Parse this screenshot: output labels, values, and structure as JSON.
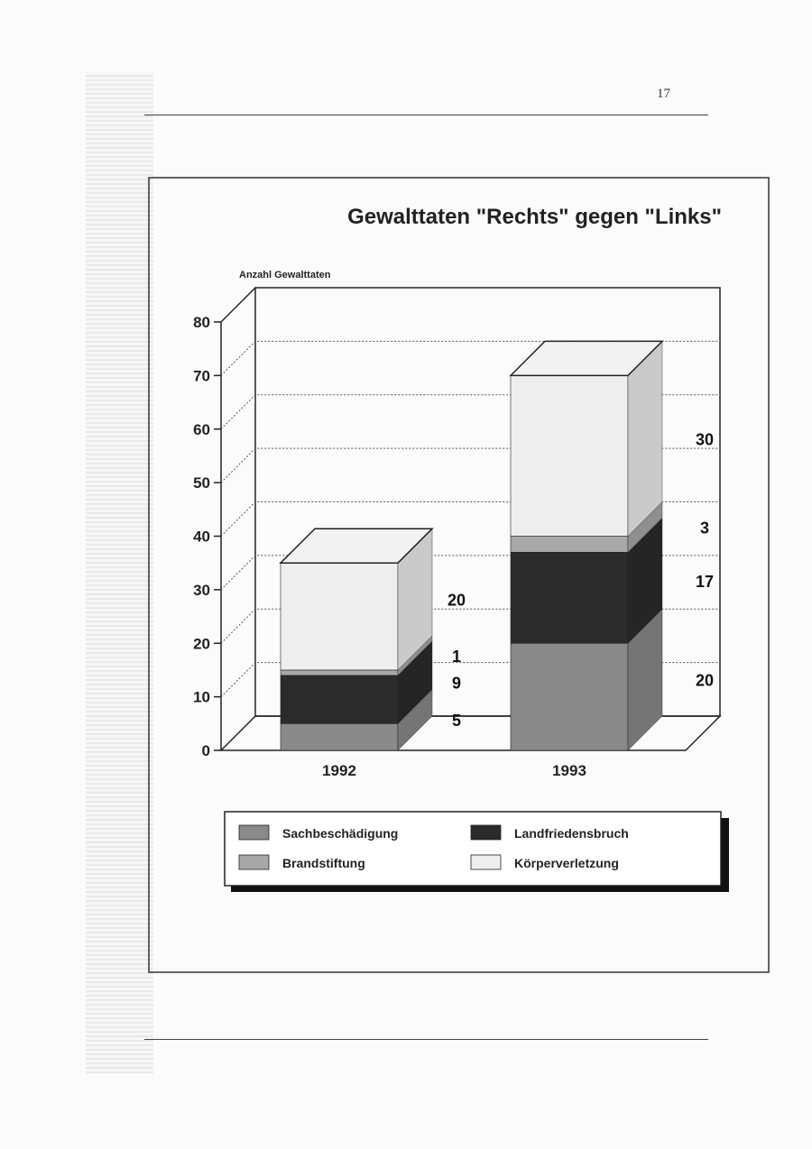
{
  "page_number": "17",
  "chart_data": {
    "type": "bar",
    "stacked": true,
    "three_d": true,
    "title": "Gewalttaten \"Rechts\" gegen \"Links\"",
    "ylabel": "Anzahl Gewalttaten",
    "xlabel": "",
    "ylim": [
      0,
      80
    ],
    "yticks": [
      0,
      10,
      20,
      30,
      40,
      50,
      60,
      70,
      80
    ],
    "grid": true,
    "legend_position": "bottom",
    "categories": [
      "1992",
      "1993"
    ],
    "series": [
      {
        "name": "Sachbeschädigung",
        "values": [
          5,
          20
        ],
        "color": "#8a8a8a"
      },
      {
        "name": "Landfriedensbruch",
        "values": [
          9,
          17
        ],
        "color": "#2b2b2b"
      },
      {
        "name": "Brandstiftung",
        "values": [
          1,
          3
        ],
        "color": "#a8a8a8"
      },
      {
        "name": "Körperverletzung",
        "values": [
          20,
          30
        ],
        "color": "#eeeeee"
      }
    ]
  }
}
